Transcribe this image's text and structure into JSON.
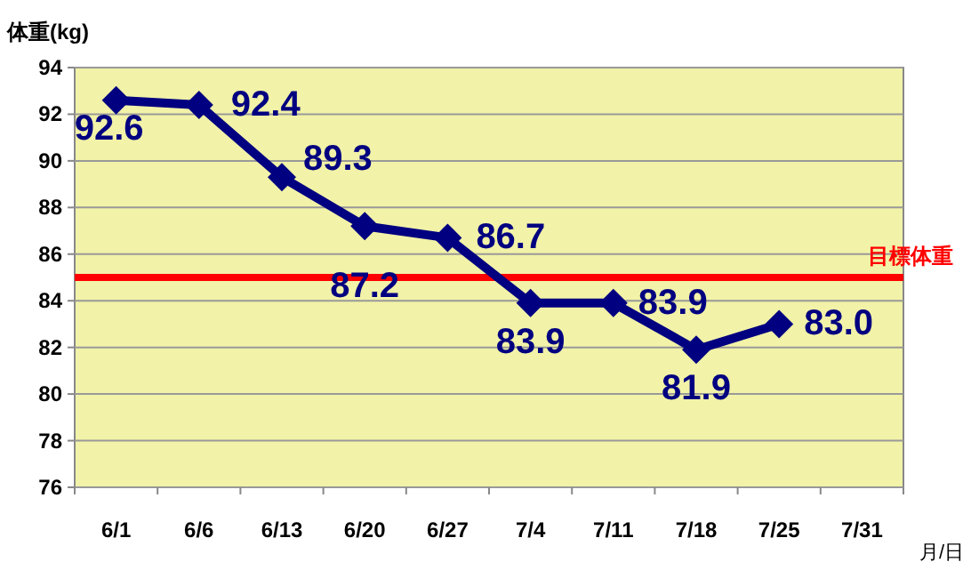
{
  "chart_data": {
    "type": "line",
    "ylabel": "体重(kg)",
    "xlabel": "月/日",
    "categories": [
      "6/1",
      "6/6",
      "6/13",
      "6/20",
      "6/27",
      "7/4",
      "7/11",
      "7/18",
      "7/25",
      "7/31"
    ],
    "series": [
      {
        "color": "#000080",
        "values": [
          92.6,
          92.4,
          89.3,
          87.2,
          86.7,
          83.9,
          83.9,
          81.9,
          83.0,
          null
        ],
        "value_labels": [
          "92.6",
          "92.4",
          "89.3",
          "87.2",
          "86.7",
          "83.9",
          "83.9",
          "81.9",
          "83.0",
          null
        ]
      }
    ],
    "ylim": [
      76,
      94
    ],
    "yticks": [
      76,
      78,
      80,
      82,
      84,
      86,
      88,
      90,
      92,
      94
    ],
    "grid": "y",
    "marker": "diamond",
    "line_style": "solid",
    "ref_lines": [
      {
        "axis": "y",
        "value": 85,
        "label": "目標体重",
        "color": "#ff0000"
      }
    ]
  }
}
